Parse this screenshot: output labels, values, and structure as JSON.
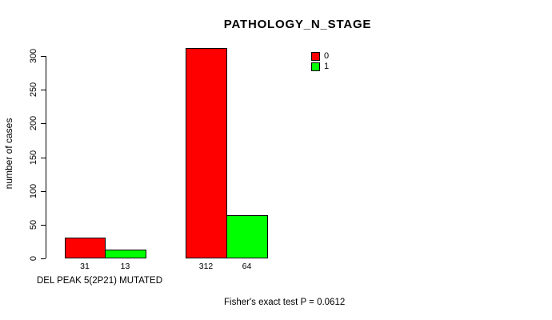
{
  "chart_data": {
    "type": "bar",
    "title": "PATHOLOGY_N_STAGE",
    "ylabel": "number of cases",
    "xlabel": "DEL PEAK 5(2P21) MUTATED",
    "annotation": "Fisher's exact test P = 0.0612",
    "ylim": [
      0,
      300
    ],
    "yticks": [
      "0",
      "50",
      "100",
      "150",
      "200",
      "250",
      "300"
    ],
    "grid": false,
    "legend_position": "top-right",
    "series": [
      {
        "name": "0",
        "color": "#ff0000"
      },
      {
        "name": "1",
        "color": "#00ff00"
      }
    ],
    "groups": [
      {
        "values": [
          31,
          13
        ]
      },
      {
        "values": [
          312,
          64
        ]
      }
    ],
    "bar_value_labels": [
      "31",
      "13",
      "312",
      "64"
    ]
  }
}
